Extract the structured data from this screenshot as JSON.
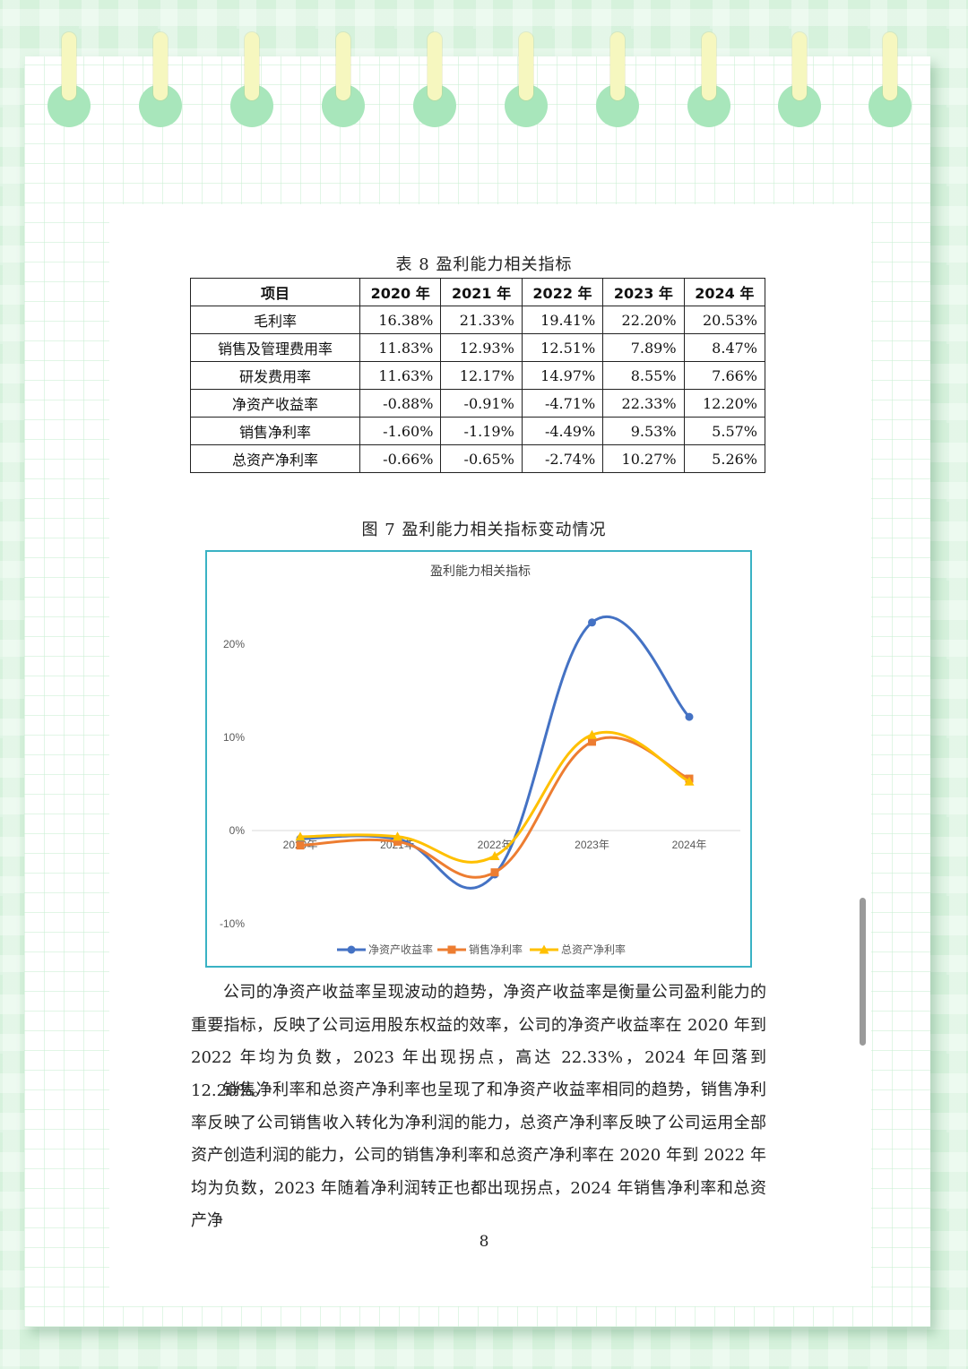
{
  "table": {
    "caption": "表 8  盈利能力相关指标",
    "header": [
      "项目",
      "2020 年",
      "2021 年",
      "2022 年",
      "2023 年",
      "2024 年"
    ],
    "rows": [
      {
        "label": "毛利率",
        "values": [
          "16.38%",
          "21.33%",
          "19.41%",
          "22.20%",
          "20.53%"
        ]
      },
      {
        "label": "销售及管理费用率",
        "values": [
          "11.83%",
          "12.93%",
          "12.51%",
          "7.89%",
          "8.47%"
        ]
      },
      {
        "label": "研发费用率",
        "values": [
          "11.63%",
          "12.17%",
          "14.97%",
          "8.55%",
          "7.66%"
        ]
      },
      {
        "label": "净资产收益率",
        "values": [
          "-0.88%",
          "-0.91%",
          "-4.71%",
          "22.33%",
          "12.20%"
        ]
      },
      {
        "label": "销售净利率",
        "values": [
          "-1.60%",
          "-1.19%",
          "-4.49%",
          "9.53%",
          "5.57%"
        ]
      },
      {
        "label": "总资产净利率",
        "values": [
          "-0.66%",
          "-0.65%",
          "-2.74%",
          "10.27%",
          "5.26%"
        ]
      }
    ]
  },
  "figure": {
    "caption": "图 7  盈利能力相关指标变动情况"
  },
  "chart_data": {
    "type": "line",
    "title": "盈利能力相关指标",
    "categories": [
      "2020年",
      "2021年",
      "2022年",
      "2023年",
      "2024年"
    ],
    "yticks": [
      "20%",
      "10%",
      "0%",
      "-10%"
    ],
    "ylim": [
      -10,
      20
    ],
    "smooth": true,
    "legend_position": "bottom",
    "series": [
      {
        "name": "净资产收益率",
        "values": [
          -0.88,
          -0.91,
          -4.71,
          22.33,
          12.2
        ],
        "color": "#4472c4",
        "marker": "circle"
      },
      {
        "name": "销售净利率",
        "values": [
          -1.6,
          -1.19,
          -4.49,
          9.53,
          5.57
        ],
        "color": "#ed7d31",
        "marker": "square"
      },
      {
        "name": "总资产净利率",
        "values": [
          -0.66,
          -0.65,
          -2.74,
          10.27,
          5.26
        ],
        "color": "#ffc000",
        "marker": "triangle"
      }
    ]
  },
  "paragraphs": [
    "公司的净资产收益率呈现波动的趋势，净资产收益率是衡量公司盈利能力的重要指标，反映了公司运用股东权益的效率，公司的净资产收益率在 2020 年到 2022 年均为负数，2023 年出现拐点，高达 22.33%，2024 年回落到 12.20%。",
    "销售净利率和总资产净利率也呈现了和净资产收益率相同的趋势，销售净利率反映了公司销售收入转化为净利润的能力，总资产净利率反映了公司运用全部资产创造利润的能力，公司的销售净利率和总资产净利率在 2020 年到 2022 年均为负数，2023 年随着净利润转正也都出现拐点，2024 年销售净利率和总资产净"
  ],
  "page_number": "8",
  "colors": {
    "background": "#d6f2dc",
    "hole": "#a8e6bb",
    "ring": "#f6f7bf",
    "chart_border": "#3ab2c4"
  }
}
